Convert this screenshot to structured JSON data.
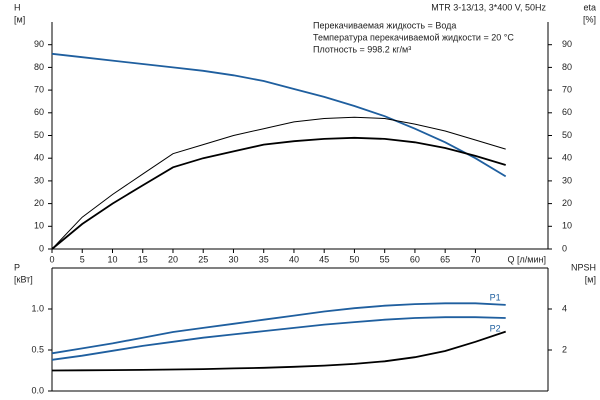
{
  "chart_data": [
    {
      "type": "line",
      "title": "MTR 3-13/13, 3*400 V, 50Hz",
      "annotations": [
        "Перекачиваемая жидкость = Вода",
        "Температура перекачиваемой жидкости = 20 °C",
        "Плотность = 998.2 кг/м³"
      ],
      "y_label": "H",
      "y_unit": "[м]",
      "y2_label": "eta",
      "y2_unit": "[%]",
      "x_label": "Q [л/мин]",
      "x": [
        0,
        5,
        10,
        15,
        20,
        25,
        30,
        35,
        40,
        45,
        50,
        55,
        60,
        65,
        70,
        75
      ],
      "xlim": [
        0,
        82
      ],
      "xticks": [
        0,
        5,
        10,
        15,
        20,
        25,
        30,
        35,
        40,
        45,
        50,
        55,
        60,
        65,
        70
      ],
      "ylim": [
        0,
        100
      ],
      "yticks": [
        0,
        10,
        20,
        30,
        40,
        50,
        60,
        70,
        80,
        90
      ],
      "y2lim": [
        0,
        100
      ],
      "y2ticks": [
        0,
        10,
        20,
        30,
        40,
        50,
        60,
        70,
        80,
        90
      ],
      "series": [
        {
          "color": "#1f5f9f",
          "values": [
            86,
            84.5,
            83,
            81.5,
            80,
            78.5,
            76.5,
            74,
            70.5,
            67,
            63,
            58.5,
            53,
            47,
            40,
            32
          ]
        },
        {
          "color": "#000000",
          "axis": "y2",
          "values": [
            0,
            14,
            24,
            33,
            42,
            46,
            50,
            53,
            56,
            57.5,
            58,
            57.5,
            55,
            52,
            48,
            44
          ]
        },
        {
          "color": "#000000",
          "axis": "y2",
          "values": [
            0,
            11,
            20,
            28,
            36,
            40,
            43,
            46,
            47.5,
            48.5,
            49,
            48.5,
            47,
            44.5,
            41,
            37
          ]
        }
      ]
    },
    {
      "type": "line",
      "y_label": "P",
      "y_unit": "[кВт]",
      "y2_label": "NPSH",
      "y2_unit": "[м]",
      "x": [
        0,
        5,
        10,
        15,
        20,
        25,
        30,
        35,
        40,
        45,
        50,
        55,
        60,
        65,
        70,
        75
      ],
      "xlim": [
        0,
        82
      ],
      "ylim": [
        0,
        1.5
      ],
      "yticks": [
        {
          "value": 0,
          "label": "0.0"
        },
        {
          "value": 0.5,
          "label": "0.5"
        },
        {
          "value": 1,
          "label": "1.0"
        }
      ],
      "y2lim": [
        0,
        6
      ],
      "y2ticks": [
        2,
        4
      ],
      "series": [
        {
          "name": "P1",
          "color": "#1f5f9f",
          "values": [
            0.46,
            0.52,
            0.58,
            0.65,
            0.72,
            0.77,
            0.82,
            0.87,
            0.92,
            0.97,
            1.01,
            1.04,
            1.06,
            1.07,
            1.07,
            1.05
          ]
        },
        {
          "name": "P2",
          "color": "#1f5f9f",
          "values": [
            0.38,
            0.43,
            0.49,
            0.55,
            0.6,
            0.65,
            0.69,
            0.73,
            0.77,
            0.81,
            0.84,
            0.87,
            0.89,
            0.9,
            0.9,
            0.89
          ]
        },
        {
          "color": "#000000",
          "axis": "y2",
          "values": [
            1.0,
            1.01,
            1.02,
            1.03,
            1.05,
            1.07,
            1.1,
            1.13,
            1.18,
            1.24,
            1.32,
            1.45,
            1.65,
            1.95,
            2.4,
            2.9
          ]
        }
      ]
    }
  ]
}
